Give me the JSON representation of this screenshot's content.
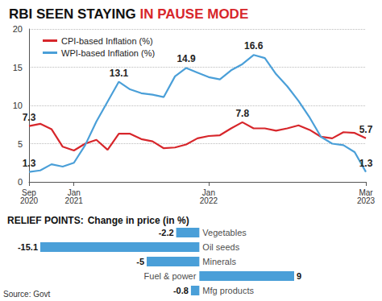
{
  "chart_data": [
    {
      "type": "line",
      "title": "RBI SEEN STAYING IN PAUSE MODE",
      "categories": [
        "Sep 2020",
        null,
        null,
        null,
        "Jan 2021",
        null,
        null,
        null,
        null,
        null,
        null,
        null,
        null,
        null,
        null,
        null,
        "Jan 2022",
        null,
        null,
        null,
        null,
        null,
        null,
        null,
        null,
        null,
        null,
        null,
        null,
        null,
        "Mar 2023"
      ],
      "series": [
        {
          "name": "CPI-based Inflation (%)",
          "color": "#d7262b",
          "values": [
            7.3,
            7.6,
            6.9,
            4.6,
            4.1,
            5.0,
            5.5,
            4.2,
            6.3,
            6.3,
            5.6,
            5.3,
            4.4,
            4.5,
            4.9,
            5.7,
            6.0,
            6.1,
            7.0,
            7.8,
            7.0,
            7.0,
            6.7,
            7.0,
            7.4,
            6.8,
            5.9,
            5.7,
            6.5,
            6.4,
            5.7
          ],
          "value_labels": [
            "7.3",
            null,
            null,
            null,
            null,
            null,
            null,
            null,
            null,
            null,
            null,
            null,
            null,
            null,
            null,
            null,
            null,
            null,
            null,
            "7.8",
            null,
            null,
            null,
            null,
            null,
            null,
            null,
            null,
            null,
            null,
            "5.7"
          ]
        },
        {
          "name": "WPI-based Inflation (%)",
          "color": "#4a9fd8",
          "values": [
            1.3,
            1.5,
            2.3,
            2.0,
            2.5,
            4.8,
            7.9,
            10.5,
            13.1,
            12.1,
            11.6,
            11.4,
            11.1,
            13.8,
            14.9,
            14.3,
            13.7,
            13.4,
            14.6,
            15.4,
            16.6,
            16.2,
            14.1,
            12.5,
            10.6,
            8.4,
            5.9,
            5.0,
            4.8,
            3.9,
            1.3
          ],
          "value_labels": [
            "1.3",
            null,
            null,
            null,
            null,
            null,
            null,
            null,
            "13.1",
            null,
            null,
            null,
            null,
            null,
            "14.9",
            null,
            null,
            null,
            null,
            null,
            "16.6",
            null,
            null,
            null,
            null,
            null,
            null,
            null,
            null,
            null,
            "1.3"
          ]
        }
      ],
      "ylim": [
        0,
        20
      ],
      "yticks": [
        0,
        5,
        10,
        15,
        20
      ],
      "grid": true,
      "legend": "upper left"
    },
    {
      "type": "bar",
      "orientation": "horizontal",
      "title": "RELIEF POINTS:",
      "subtitle": "Change in price (in %)",
      "categories": [
        "Vegetables",
        "Oil seeds",
        "Minerals",
        "Fuel & power",
        "Mfg products"
      ],
      "values": [
        -2.2,
        -15.1,
        -5,
        9,
        -0.8
      ],
      "color": "#4a9fd8",
      "data_labels": true,
      "tick_labels": false,
      "source": "Source: Govt"
    }
  ]
}
